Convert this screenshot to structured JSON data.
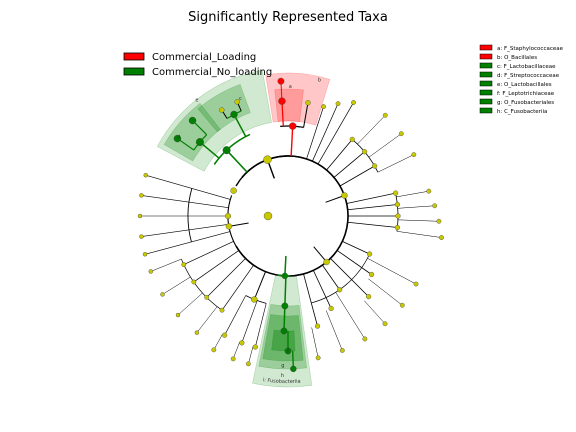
{
  "chart_data": {
    "type": "cladogram",
    "title": "Significantly Represented Taxa",
    "legend": [
      {
        "label": "Commercial_Loading",
        "color": "#ff0000"
      },
      {
        "label": "Commercial_No_loading",
        "color": "#008000"
      }
    ],
    "taxa_legend": [
      {
        "label": "a: F_Staphylococcaceae",
        "group": "Commercial_Loading",
        "color": "#ff0000"
      },
      {
        "label": "b: O_Bacillales",
        "group": "Commercial_Loading",
        "color": "#ff0000"
      },
      {
        "label": "c: F_Lactobacillaceae",
        "group": "Commercial_No_loading",
        "color": "#008000"
      },
      {
        "label": "d: F_Streptococcaceae",
        "group": "Commercial_No_loading",
        "color": "#008000"
      },
      {
        "label": "e: O_Lactobacillales",
        "group": "Commercial_No_loading",
        "color": "#008000"
      },
      {
        "label": "f: F_Leptotrichiaceae",
        "group": "Commercial_No_loading",
        "color": "#008000"
      },
      {
        "label": "g: O_Fusobacteriales",
        "group": "Commercial_No_loading",
        "color": "#008000"
      },
      {
        "label": "h: C_Fusobacteriia",
        "group": "Commercial_No_loading",
        "color": "#008000"
      }
    ],
    "clade_letters": [
      "a",
      "b",
      "c",
      "d",
      "e",
      "f",
      "g",
      "h"
    ],
    "sector_labels": [
      {
        "letter": "i",
        "text": "i: Fusobacteriia"
      }
    ],
    "colors": {
      "nonsignificant_node": "#c8c800",
      "loading": "#ff0000",
      "no_loading": "#008000"
    }
  }
}
